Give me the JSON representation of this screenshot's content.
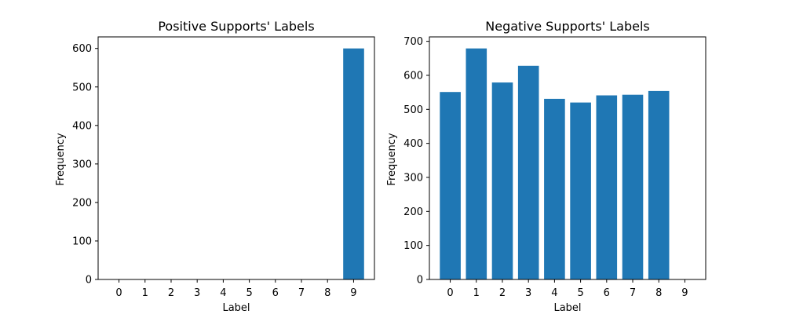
{
  "colors": {
    "bar": "#1f77b4"
  },
  "chart_data": [
    {
      "type": "bar",
      "title": "Positive Supports' Labels",
      "xlabel": "Label",
      "ylabel": "Frequency",
      "categories": [
        "0",
        "1",
        "2",
        "3",
        "4",
        "5",
        "6",
        "7",
        "8",
        "9"
      ],
      "values": [
        0,
        0,
        0,
        0,
        0,
        0,
        0,
        0,
        0,
        600
      ],
      "ylim": [
        0,
        630
      ],
      "yticks": [
        0,
        100,
        200,
        300,
        400,
        500,
        600
      ],
      "grid": false
    },
    {
      "type": "bar",
      "title": "Negative Supports' Labels",
      "xlabel": "Label",
      "ylabel": "Frequency",
      "categories": [
        "0",
        "1",
        "2",
        "3",
        "4",
        "5",
        "6",
        "7",
        "8",
        "9"
      ],
      "values": [
        551,
        679,
        579,
        628,
        531,
        520,
        541,
        543,
        554,
        0
      ],
      "ylim": [
        0,
        713
      ],
      "yticks": [
        0,
        100,
        200,
        300,
        400,
        500,
        600,
        700
      ],
      "grid": false
    }
  ]
}
